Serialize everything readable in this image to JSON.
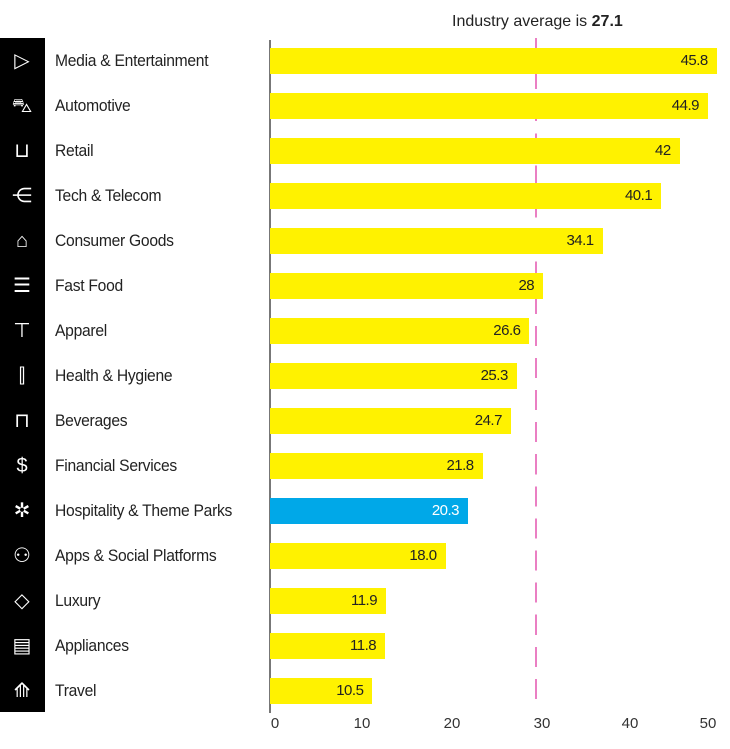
{
  "annotation": {
    "text": "Industry average is",
    "value": "27.1"
  },
  "chart_data": {
    "type": "bar",
    "orientation": "horizontal",
    "categories": [
      "Media & Entertainment",
      "Automotive",
      "Retail",
      "Tech & Telecom",
      "Consumer Goods",
      "Fast Food",
      "Apparel",
      "Health & Hygiene",
      "Beverages",
      "Financial Services",
      "Hospitality & Theme Parks",
      "Apps & Social Platforms",
      "Luxury",
      "Appliances",
      "Travel"
    ],
    "values": [
      45.8,
      44.9,
      42,
      40.1,
      34.1,
      28,
      26.6,
      25.3,
      24.7,
      21.8,
      20.3,
      18.0,
      11.9,
      11.8,
      10.5
    ],
    "value_labels": [
      "45.8",
      "44.9",
      "42",
      "40.1",
      "34.1",
      "28",
      "26.6",
      "25.3",
      "24.7",
      "21.8",
      "20.3",
      "18.0",
      "11.9",
      "11.8",
      "10.5"
    ],
    "highlight": "Hospitality & Theme Parks",
    "reference_line": 27.1,
    "xlim": [
      0,
      50
    ],
    "xticks": [
      "0",
      "10",
      "20",
      "30",
      "40",
      "50"
    ],
    "grid": false,
    "colors": {
      "bar": "#fff200",
      "highlight": "#00a8e8",
      "reference": "#ea7fc3"
    },
    "icons": [
      "video-play-icon",
      "car-icon",
      "cart-icon",
      "network-icon",
      "shopping-bag-icon",
      "burger-icon",
      "tshirt-icon",
      "toiletries-icon",
      "bottles-icon",
      "money-icon",
      "ferris-wheel-icon",
      "social-network-icon",
      "diamond-icon",
      "appliance-icon",
      "travel-icon"
    ]
  }
}
